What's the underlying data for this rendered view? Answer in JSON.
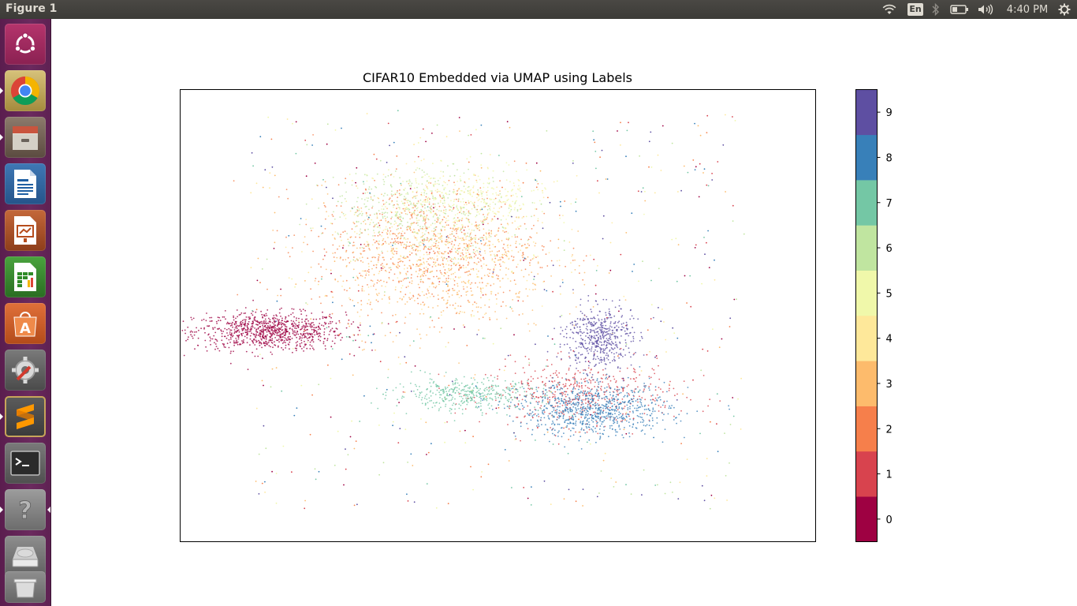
{
  "window": {
    "title": "Figure 1"
  },
  "tray": {
    "language": "En",
    "clock": "4:40 PM"
  },
  "launcher": {
    "items": [
      "ubuntu-dash",
      "chrome",
      "files",
      "writer",
      "impress",
      "calc",
      "software-center",
      "system-settings",
      "sublime-text",
      "terminal",
      "help",
      "disk-drive",
      "trash"
    ]
  },
  "colors": {
    "class_0": "#9e0142",
    "class_1": "#d8434e",
    "class_2": "#f67f4b",
    "class_3": "#fdbb6c",
    "class_4": "#fee89a",
    "class_5": "#f0f8aa",
    "class_6": "#c0e5a0",
    "class_7": "#74c7a5",
    "class_8": "#3880b9",
    "class_9": "#5e4fa2"
  },
  "chart_data": {
    "type": "scatter",
    "title": "CIFAR10 Embedded via UMAP using Labels",
    "xlabel": "",
    "ylabel": "",
    "axis_ticks_visible": false,
    "colorbar": {
      "labels": [
        "0",
        "1",
        "2",
        "3",
        "4",
        "5",
        "6",
        "7",
        "8",
        "9"
      ],
      "colormap": "Spectral",
      "discrete": true
    },
    "series": [
      {
        "label": "0",
        "clusters": [
          {
            "cx": -4.6,
            "cy": 0.6,
            "sx": 0.8,
            "sy": 0.18,
            "n": 900
          }
        ]
      },
      {
        "label": "1",
        "clusters": [
          {
            "cx": 2.0,
            "cy": -0.6,
            "sx": 1.0,
            "sy": 0.3,
            "n": 500
          }
        ]
      },
      {
        "label": "2",
        "clusters": [
          {
            "cx": -1.3,
            "cy": 2.2,
            "sx": 1.2,
            "sy": 0.6,
            "n": 700
          }
        ]
      },
      {
        "label": "3",
        "clusters": [
          {
            "cx": -1.0,
            "cy": 1.9,
            "sx": 1.2,
            "sy": 0.7,
            "n": 600
          }
        ]
      },
      {
        "label": "4",
        "clusters": [
          {
            "cx": -0.9,
            "cy": 2.3,
            "sx": 1.2,
            "sy": 0.6,
            "n": 400
          }
        ]
      },
      {
        "label": "5",
        "clusters": [
          {
            "cx": -0.5,
            "cy": 3.1,
            "sx": 0.9,
            "sy": 0.3,
            "n": 300
          }
        ]
      },
      {
        "label": "6",
        "clusters": [
          {
            "cx": -1.4,
            "cy": 2.9,
            "sx": 1.0,
            "sy": 0.4,
            "n": 400
          }
        ]
      },
      {
        "label": "7",
        "clusters": [
          {
            "cx": -0.4,
            "cy": -0.6,
            "sx": 0.8,
            "sy": 0.15,
            "n": 400
          }
        ]
      },
      {
        "label": "8",
        "clusters": [
          {
            "cx": 2.3,
            "cy": -0.9,
            "sx": 0.8,
            "sy": 0.25,
            "n": 800
          }
        ]
      },
      {
        "label": "9",
        "clusters": [
          {
            "cx": 2.4,
            "cy": 0.5,
            "sx": 0.35,
            "sy": 0.3,
            "n": 500
          }
        ]
      }
    ]
  }
}
